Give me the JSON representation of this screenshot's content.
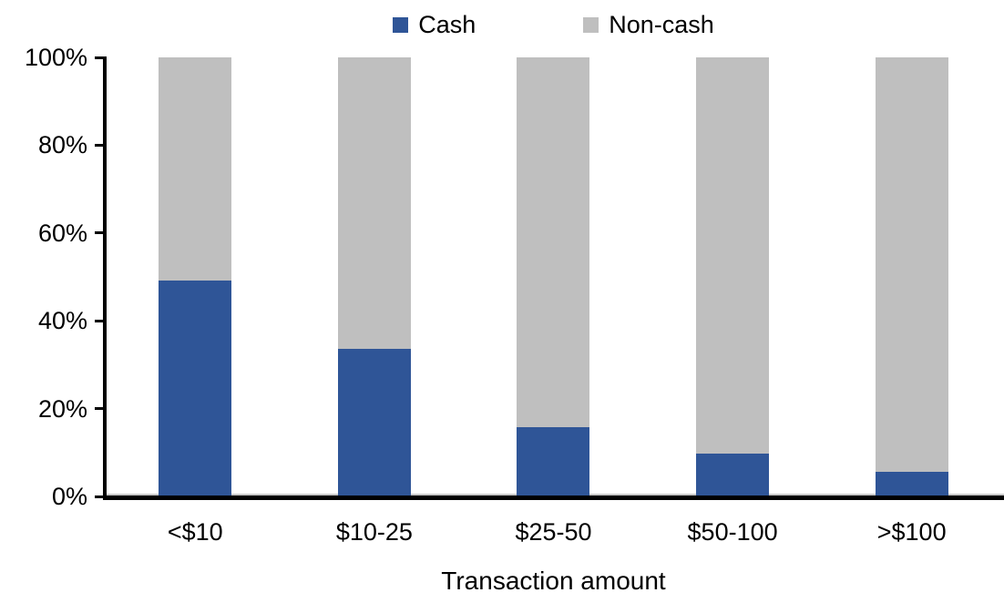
{
  "chart_data": {
    "type": "bar",
    "stacked": true,
    "percent_stacked": true,
    "xlabel": "Transaction amount",
    "ylabel": "",
    "categories": [
      "<$10",
      "$10-25",
      "$25-50",
      "$50-100",
      ">$100"
    ],
    "series": [
      {
        "name": "Cash",
        "color": "#2F5597",
        "values": [
          49,
          33.5,
          15.5,
          9.5,
          5.5
        ]
      },
      {
        "name": "Non-cash",
        "color": "#BFBFBF",
        "values": [
          51,
          66.5,
          84.5,
          90.5,
          94.5
        ]
      }
    ],
    "ylim": [
      0,
      100
    ],
    "ytick_step": 20,
    "yticks": [
      "0%",
      "20%",
      "40%",
      "60%",
      "80%",
      "100%"
    ],
    "legend_position": "top",
    "grid": false,
    "axis_color": "#000000"
  }
}
